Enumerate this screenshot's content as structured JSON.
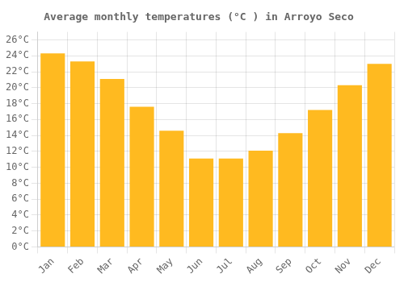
{
  "chart_data": {
    "type": "bar",
    "title": "Average monthly temperatures (°C ) in Arroyo Seco",
    "categories": [
      "Jan",
      "Feb",
      "Mar",
      "Apr",
      "May",
      "Jun",
      "Jul",
      "Aug",
      "Sep",
      "Oct",
      "Nov",
      "Dec"
    ],
    "values": [
      24.3,
      23.3,
      21.1,
      17.6,
      14.6,
      11.1,
      11.1,
      12.1,
      14.3,
      17.2,
      20.3,
      23.0
    ],
    "color": "#FFBA20",
    "ylim": [
      0,
      27
    ],
    "yticks": [
      {
        "value": 0,
        "label": "0°C"
      },
      {
        "value": 2,
        "label": "2°C"
      },
      {
        "value": 4,
        "label": "4°C"
      },
      {
        "value": 6,
        "label": "6°C"
      },
      {
        "value": 8,
        "label": "8°C"
      },
      {
        "value": 10,
        "label": "10°C"
      },
      {
        "value": 12,
        "label": "12°C"
      },
      {
        "value": 14,
        "label": "14°C"
      },
      {
        "value": 16,
        "label": "16°C"
      },
      {
        "value": 18,
        "label": "18°C"
      },
      {
        "value": 20,
        "label": "20°C"
      },
      {
        "value": 22,
        "label": "22°C"
      },
      {
        "value": 24,
        "label": "24°C"
      },
      {
        "value": 26,
        "label": "26°C"
      }
    ],
    "grid": true
  }
}
